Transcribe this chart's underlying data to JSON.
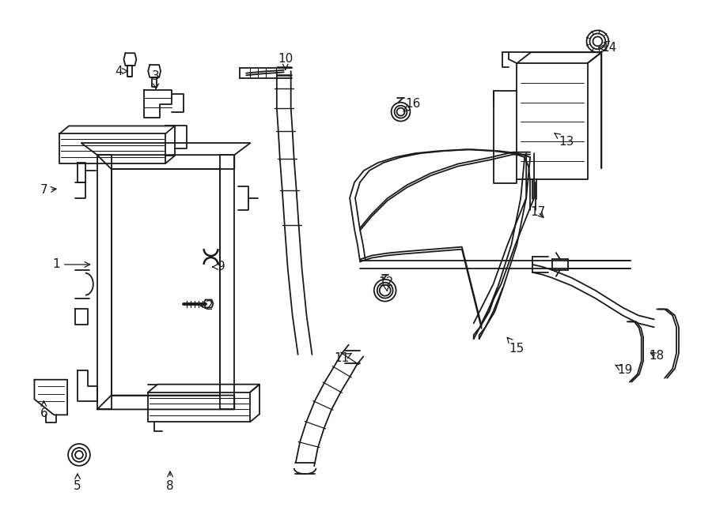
{
  "bg_color": "#ffffff",
  "line_color": "#1a1a1a",
  "figsize": [
    9.0,
    6.61
  ],
  "dpi": 100,
  "labels": [
    [
      "1",
      68,
      335,
      115,
      335
    ],
    [
      "2",
      263,
      388,
      248,
      388
    ],
    [
      "3",
      195,
      95,
      195,
      115
    ],
    [
      "4",
      148,
      88,
      163,
      88
    ],
    [
      "5",
      95,
      618,
      95,
      598
    ],
    [
      "6",
      52,
      525,
      52,
      505
    ],
    [
      "7",
      52,
      240,
      72,
      238
    ],
    [
      "8",
      213,
      618,
      213,
      595
    ],
    [
      "9",
      278,
      338,
      263,
      338
    ],
    [
      "10",
      360,
      72,
      360,
      90
    ],
    [
      "11",
      432,
      455,
      445,
      448
    ],
    [
      "12",
      488,
      358,
      490,
      370
    ],
    [
      "13",
      718,
      178,
      700,
      165
    ],
    [
      "14",
      773,
      58,
      758,
      58
    ],
    [
      "15",
      655,
      442,
      640,
      425
    ],
    [
      "16",
      523,
      130,
      510,
      140
    ],
    [
      "17",
      682,
      268,
      692,
      278
    ],
    [
      "18",
      833,
      452,
      822,
      445
    ],
    [
      "19",
      793,
      470,
      780,
      463
    ]
  ]
}
